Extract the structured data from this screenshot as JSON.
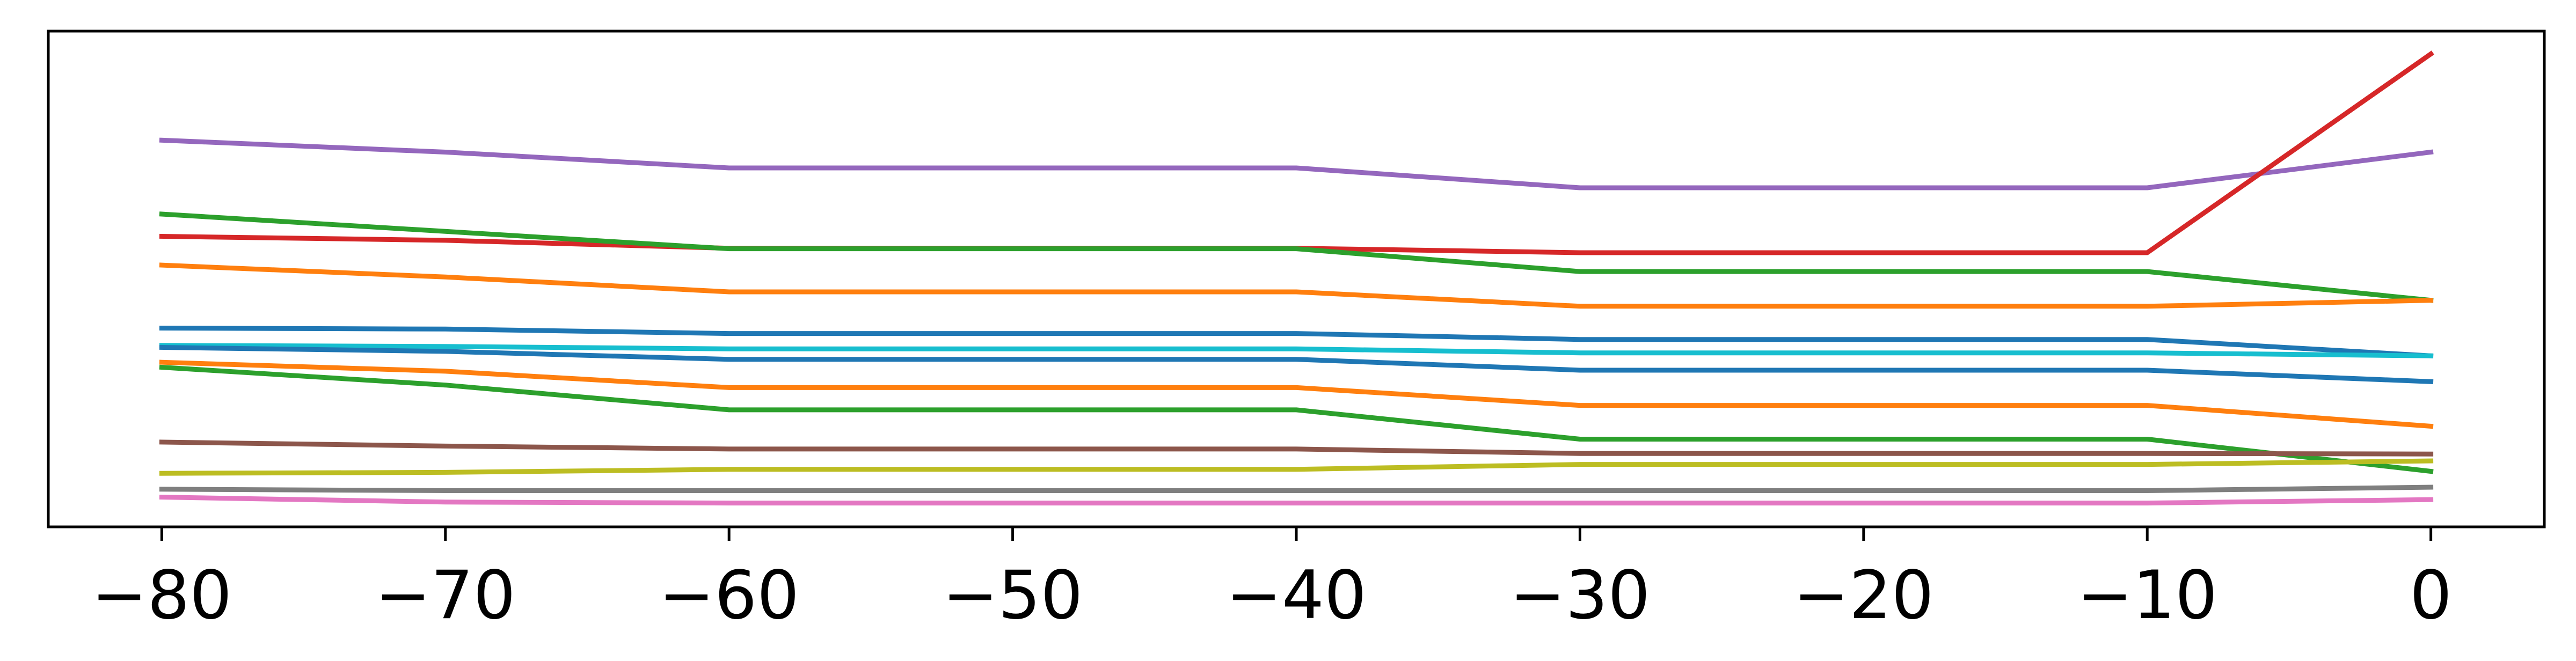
{
  "chart_data": {
    "type": "line",
    "title": "",
    "xlabel": "",
    "ylabel": "",
    "xlim": [
      -84,
      4
    ],
    "ylim": [
      0,
      100
    ],
    "grid": false,
    "legend": "none",
    "yticks_visible": false,
    "x": [
      -80,
      -70,
      -60,
      -40,
      -30,
      -10,
      0
    ],
    "xticks": [
      -80,
      -70,
      -60,
      -50,
      -40,
      -30,
      -20,
      -10,
      0
    ],
    "xtick_labels": [
      "−80",
      "−70",
      "−60",
      "−50",
      "−40",
      "−30",
      "−20",
      "−10",
      "0"
    ],
    "series": [
      {
        "color": "#9467bd",
        "values": [
          78.0,
          75.6,
          72.4,
          72.4,
          68.4,
          68.4,
          75.6
        ]
      },
      {
        "color": "#d62728",
        "values": [
          58.6,
          57.8,
          56.2,
          56.2,
          55.3,
          55.3,
          95.4
        ]
      },
      {
        "color": "#2ca02c",
        "values": [
          63.1,
          59.6,
          56.1,
          56.1,
          51.5,
          51.5,
          45.7
        ]
      },
      {
        "color": "#ff7f0e",
        "values": [
          52.8,
          50.4,
          47.4,
          47.4,
          44.5,
          44.5,
          45.7
        ]
      },
      {
        "color": "#1f77b4",
        "values": [
          40.1,
          39.9,
          39.0,
          39.0,
          37.8,
          37.8,
          34.5
        ]
      },
      {
        "color": "#17becf",
        "values": [
          36.6,
          36.4,
          35.9,
          35.9,
          35.1,
          35.1,
          34.5
        ]
      },
      {
        "color": "#1f77b4",
        "values": [
          36.2,
          35.4,
          33.8,
          33.8,
          31.6,
          31.6,
          29.3
        ]
      },
      {
        "color": "#ff7f0e",
        "values": [
          33.2,
          31.4,
          28.1,
          28.1,
          24.5,
          24.5,
          20.3
        ]
      },
      {
        "color": "#2ca02c",
        "values": [
          32.2,
          28.6,
          23.6,
          23.6,
          17.7,
          17.7,
          11.2
        ]
      },
      {
        "color": "#8c564b",
        "values": [
          17.1,
          16.3,
          15.7,
          15.7,
          14.8,
          14.8,
          14.7
        ]
      },
      {
        "color": "#bcbd22",
        "values": [
          10.8,
          11.0,
          11.6,
          11.6,
          12.6,
          12.6,
          13.3
        ]
      },
      {
        "color": "#7f7f7f",
        "values": [
          7.6,
          7.3,
          7.3,
          7.3,
          7.3,
          7.3,
          8.0
        ]
      },
      {
        "color": "#e377c2",
        "values": [
          6.0,
          5.0,
          4.8,
          4.8,
          4.8,
          4.8,
          5.5
        ]
      }
    ]
  }
}
